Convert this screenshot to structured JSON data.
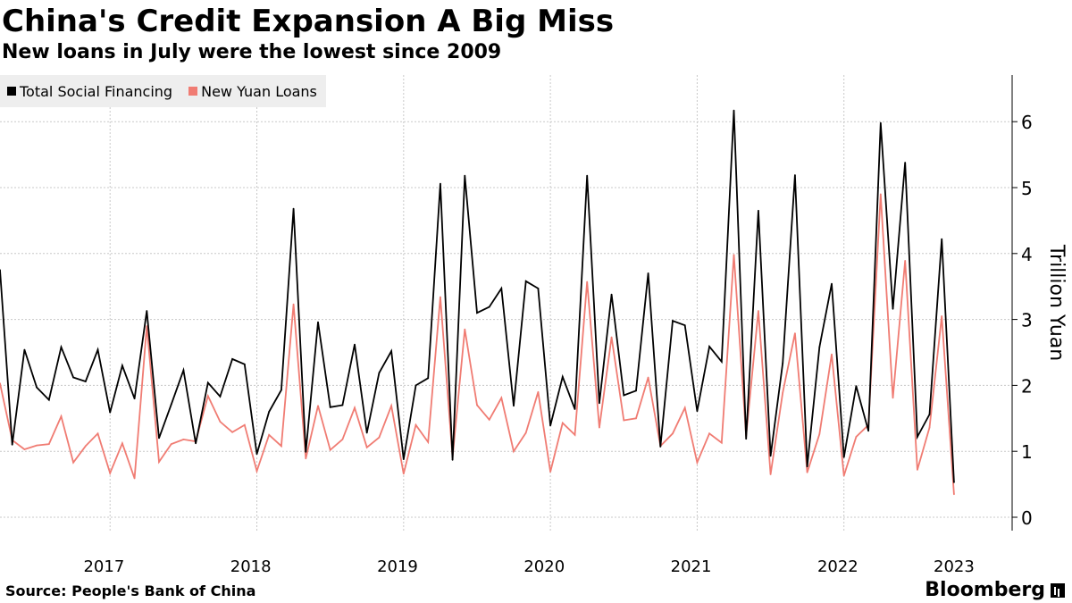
{
  "header": {
    "title": "China's Credit Expansion A Big Miss",
    "subtitle": "New loans in July were the lowest since 2009"
  },
  "footer": {
    "source": "Source: People's Bank of China",
    "brand": "Bloomberg"
  },
  "chart_data": {
    "type": "line",
    "title": "China's Credit Expansion A Big Miss",
    "subtitle": "New loans in July were the lowest since 2009",
    "xlabel": "",
    "ylabel": "Trillion Yuan",
    "ylim": [
      0,
      6.5
    ],
    "yticks": [
      0,
      1,
      2,
      3,
      4,
      5,
      6
    ],
    "x_start": "2016-10",
    "x_end": "2023-07",
    "x_tick_labels": [
      "2017",
      "2018",
      "2019",
      "2020",
      "2021",
      "2022",
      "2023"
    ],
    "grid": true,
    "legend_position": "top-left",
    "colors": {
      "Total Social Financing": "#000000",
      "New Yuan Loans": "#f07c73"
    },
    "series": [
      {
        "name": "Total Social Financing",
        "color": "#000000",
        "points": [
          [
            "2016-10",
            3.75
          ],
          [
            "2016-11",
            1.1
          ],
          [
            "2016-12",
            2.54
          ],
          [
            "2017-01",
            1.97
          ],
          [
            "2017-02",
            1.78
          ],
          [
            "2017-03",
            2.58
          ],
          [
            "2017-04",
            2.12
          ],
          [
            "2017-05",
            2.06
          ],
          [
            "2017-06",
            2.54
          ],
          [
            "2017-07",
            1.59
          ],
          [
            "2017-08",
            2.3
          ],
          [
            "2017-09",
            1.8
          ],
          [
            "2017-10",
            3.13
          ],
          [
            "2017-11",
            1.2
          ],
          [
            "2017-12",
            1.71
          ],
          [
            "2018-01",
            2.23
          ],
          [
            "2018-02",
            1.12
          ],
          [
            "2018-03",
            2.04
          ],
          [
            "2018-04",
            1.83
          ],
          [
            "2018-05",
            2.4
          ],
          [
            "2018-06",
            2.32
          ],
          [
            "2018-07",
            0.96
          ],
          [
            "2018-08",
            1.6
          ],
          [
            "2018-09",
            1.93
          ],
          [
            "2018-10",
            4.68
          ],
          [
            "2018-11",
            0.99
          ],
          [
            "2018-12",
            2.96
          ],
          [
            "2019-01",
            1.67
          ],
          [
            "2019-02",
            1.7
          ],
          [
            "2019-03",
            2.62
          ],
          [
            "2019-04",
            1.28
          ],
          [
            "2019-05",
            2.19
          ],
          [
            "2019-06",
            2.52
          ],
          [
            "2019-07",
            0.88
          ],
          [
            "2019-08",
            2.0
          ],
          [
            "2019-09",
            2.11
          ],
          [
            "2019-10",
            5.06
          ],
          [
            "2019-11",
            0.87
          ],
          [
            "2019-12",
            5.18
          ],
          [
            "2020-01",
            3.1
          ],
          [
            "2020-02",
            3.19
          ],
          [
            "2020-03",
            3.47
          ],
          [
            "2020-04",
            1.69
          ],
          [
            "2020-05",
            3.58
          ],
          [
            "2020-06",
            3.47
          ],
          [
            "2020-07",
            1.39
          ],
          [
            "2020-08",
            2.13
          ],
          [
            "2020-09",
            1.64
          ],
          [
            "2020-10",
            5.18
          ],
          [
            "2020-11",
            1.73
          ],
          [
            "2020-12",
            3.38
          ],
          [
            "2021-01",
            1.85
          ],
          [
            "2021-02",
            1.92
          ],
          [
            "2021-03",
            3.7
          ],
          [
            "2021-04",
            1.07
          ],
          [
            "2021-05",
            2.98
          ],
          [
            "2021-06",
            2.91
          ],
          [
            "2021-07",
            1.61
          ],
          [
            "2021-08",
            2.59
          ],
          [
            "2021-09",
            2.36
          ],
          [
            "2021-10",
            6.17
          ],
          [
            "2021-11",
            1.19
          ],
          [
            "2021-12",
            4.65
          ],
          [
            "2022-01",
            0.93
          ],
          [
            "2022-02",
            2.34
          ],
          [
            "2022-03",
            5.19
          ],
          [
            "2022-04",
            0.77
          ],
          [
            "2022-05",
            2.58
          ],
          [
            "2022-06",
            3.54
          ],
          [
            "2022-07",
            0.91
          ],
          [
            "2022-08",
            1.99
          ],
          [
            "2022-09",
            1.31
          ],
          [
            "2022-10",
            5.98
          ],
          [
            "2022-11",
            3.16
          ],
          [
            "2022-12",
            5.38
          ],
          [
            "2023-01",
            1.22
          ],
          [
            "2023-02",
            1.56
          ],
          [
            "2023-03",
            4.22
          ],
          [
            "2023-04",
            0.53
          ]
        ]
      },
      {
        "name": "New Yuan Loans",
        "color": "#f07c73",
        "points": [
          [
            "2016-10",
            2.03
          ],
          [
            "2016-11",
            1.17
          ],
          [
            "2016-12",
            1.03
          ],
          [
            "2017-01",
            1.09
          ],
          [
            "2017-02",
            1.11
          ],
          [
            "2017-03",
            1.53
          ],
          [
            "2017-04",
            0.83
          ],
          [
            "2017-05",
            1.08
          ],
          [
            "2017-06",
            1.27
          ],
          [
            "2017-07",
            0.67
          ],
          [
            "2017-08",
            1.12
          ],
          [
            "2017-09",
            0.59
          ],
          [
            "2017-10",
            2.9
          ],
          [
            "2017-11",
            0.84
          ],
          [
            "2017-12",
            1.11
          ],
          [
            "2018-01",
            1.18
          ],
          [
            "2018-02",
            1.15
          ],
          [
            "2018-03",
            1.84
          ],
          [
            "2018-04",
            1.45
          ],
          [
            "2018-05",
            1.29
          ],
          [
            "2018-06",
            1.4
          ],
          [
            "2018-07",
            0.7
          ],
          [
            "2018-08",
            1.25
          ],
          [
            "2018-09",
            1.08
          ],
          [
            "2018-10",
            3.23
          ],
          [
            "2018-11",
            0.89
          ],
          [
            "2018-12",
            1.69
          ],
          [
            "2019-01",
            1.02
          ],
          [
            "2019-02",
            1.18
          ],
          [
            "2019-03",
            1.66
          ],
          [
            "2019-04",
            1.06
          ],
          [
            "2019-05",
            1.21
          ],
          [
            "2019-06",
            1.69
          ],
          [
            "2019-07",
            0.66
          ],
          [
            "2019-08",
            1.4
          ],
          [
            "2019-09",
            1.14
          ],
          [
            "2019-10",
            3.34
          ],
          [
            "2019-11",
            0.91
          ],
          [
            "2019-12",
            2.85
          ],
          [
            "2020-01",
            1.7
          ],
          [
            "2020-02",
            1.48
          ],
          [
            "2020-03",
            1.81
          ],
          [
            "2020-04",
            1.0
          ],
          [
            "2020-05",
            1.28
          ],
          [
            "2020-06",
            1.9
          ],
          [
            "2020-07",
            0.69
          ],
          [
            "2020-08",
            1.43
          ],
          [
            "2020-09",
            1.25
          ],
          [
            "2020-10",
            3.57
          ],
          [
            "2020-11",
            1.36
          ],
          [
            "2020-12",
            2.73
          ],
          [
            "2021-01",
            1.47
          ],
          [
            "2021-02",
            1.5
          ],
          [
            "2021-03",
            2.12
          ],
          [
            "2021-04",
            1.08
          ],
          [
            "2021-05",
            1.27
          ],
          [
            "2021-06",
            1.66
          ],
          [
            "2021-07",
            0.83
          ],
          [
            "2021-08",
            1.27
          ],
          [
            "2021-09",
            1.13
          ],
          [
            "2021-10",
            3.98
          ],
          [
            "2021-11",
            1.23
          ],
          [
            "2021-12",
            3.13
          ],
          [
            "2022-01",
            0.65
          ],
          [
            "2022-02",
            1.89
          ],
          [
            "2022-03",
            2.79
          ],
          [
            "2022-04",
            0.68
          ],
          [
            "2022-05",
            1.26
          ],
          [
            "2022-06",
            2.47
          ],
          [
            "2022-07",
            0.63
          ],
          [
            "2022-08",
            1.22
          ],
          [
            "2022-09",
            1.4
          ],
          [
            "2022-10",
            4.9
          ],
          [
            "2022-11",
            1.81
          ],
          [
            "2022-12",
            3.89
          ],
          [
            "2023-01",
            0.72
          ],
          [
            "2023-02",
            1.36
          ],
          [
            "2023-03",
            3.05
          ],
          [
            "2023-04",
            0.35
          ]
        ]
      }
    ]
  }
}
